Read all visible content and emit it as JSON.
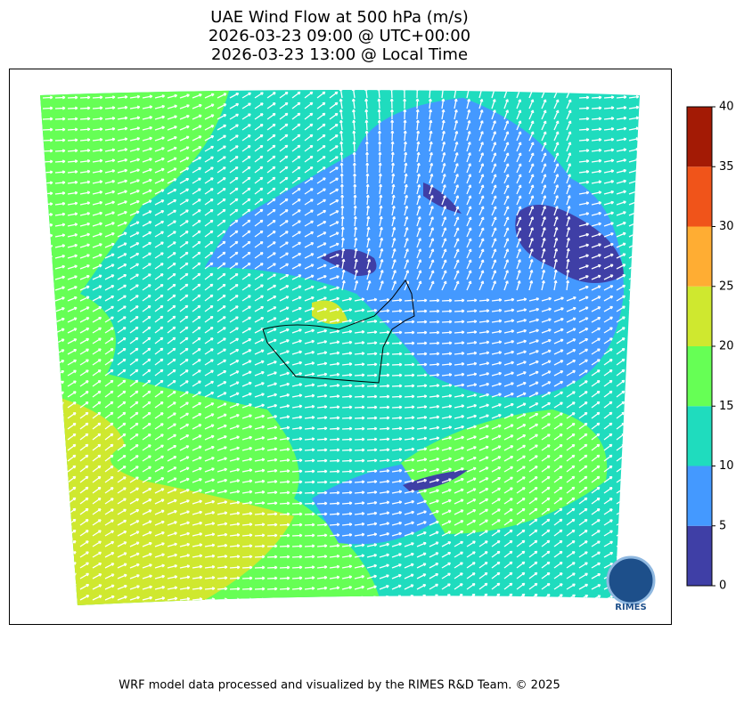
{
  "title": {
    "lines": [
      "UAE Wind Flow at 500 hPa (m/s)",
      "2026-03-23 09:00 @ UTC+00:00",
      "2026-03-23 13:00 @ Local Time"
    ]
  },
  "colorbar": {
    "ticks": [
      0,
      5,
      10,
      15,
      20,
      25,
      30,
      35,
      40
    ],
    "colors": [
      "#3f3fa6",
      "#4499ff",
      "#1fdcbe",
      "#66ff55",
      "#cfe82f",
      "#ffad33",
      "#f0541a",
      "#a31a05"
    ]
  },
  "logo": {
    "text": "RIMES"
  },
  "footer": "WRF model data processed and visualized by the RIMES R&D Team. © 2025"
}
